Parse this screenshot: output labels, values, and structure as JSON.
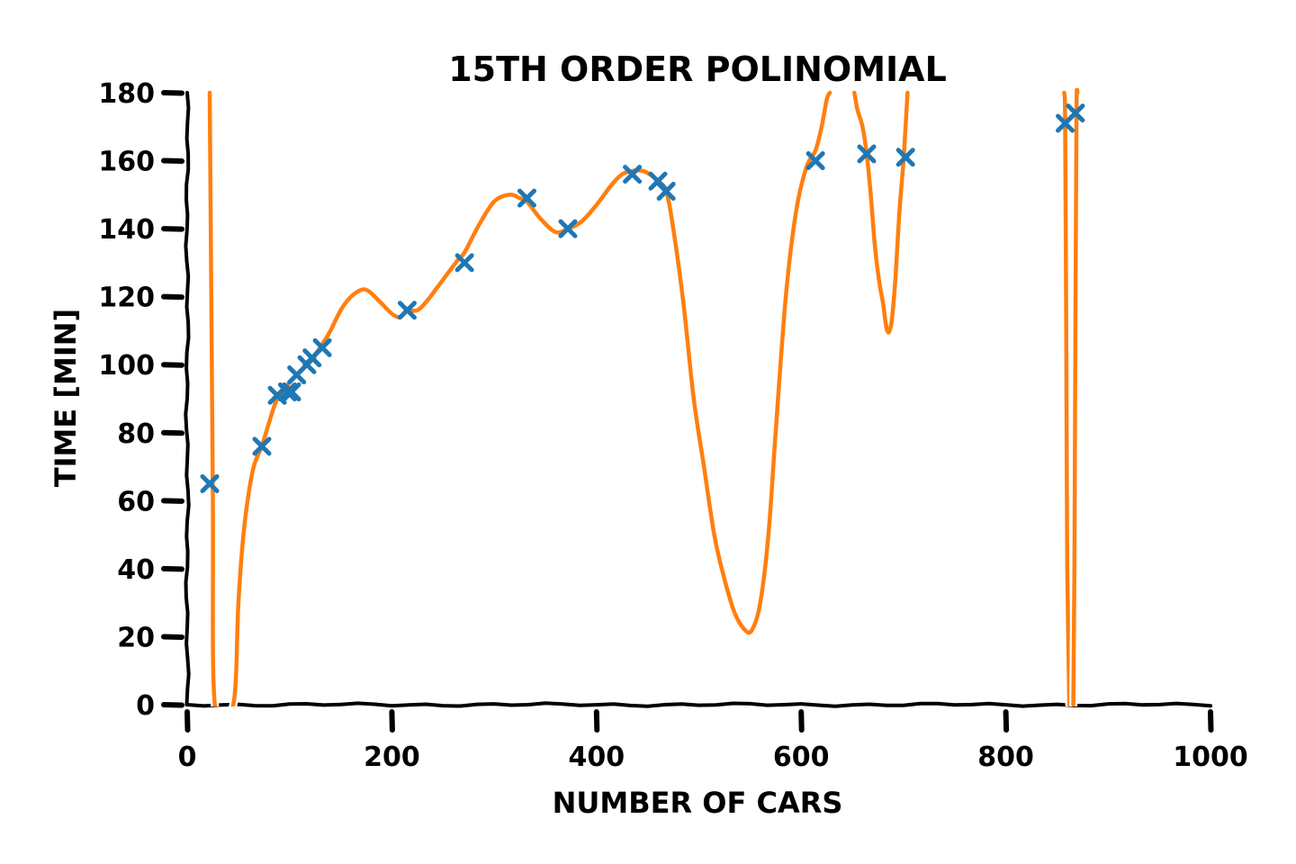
{
  "chart_data": {
    "type": "scatter",
    "title": "15th Order Polinomial",
    "xlabel": "Number of cars",
    "ylabel": "Time [min]",
    "xlim": [
      0,
      1000
    ],
    "ylim": [
      0,
      180
    ],
    "xticks": [
      0,
      200,
      400,
      600,
      800,
      1000
    ],
    "yticks": [
      0,
      20,
      40,
      60,
      80,
      100,
      120,
      140,
      160,
      180
    ],
    "grid": false,
    "legend": "none",
    "style": "xkcd hand-drawn",
    "colors": {
      "points": "#1f77b4",
      "curve": "#ff7f0e",
      "axes": "#000000"
    },
    "series": [
      {
        "type": "scatter",
        "marker": "x",
        "x": [
          22,
          73,
          88,
          98,
          102,
          107,
          117,
          122,
          132,
          215,
          271,
          332,
          372,
          435,
          460,
          468,
          614,
          664,
          702,
          858,
          868
        ],
        "y": [
          65,
          76,
          91,
          92,
          92,
          97,
          100,
          102,
          105,
          116,
          130,
          149,
          140,
          156,
          154,
          151,
          160,
          162,
          161,
          171,
          174
        ]
      },
      {
        "type": "line",
        "x": [
          22,
          25,
          27,
          45,
          50,
          55,
          60,
          65,
          70,
          73,
          80,
          88,
          98,
          107,
          117,
          125,
          132,
          140,
          150,
          160,
          170,
          175,
          180,
          190,
          200,
          208,
          215,
          225,
          235,
          245,
          255,
          265,
          271,
          285,
          300,
          315,
          325,
          332,
          345,
          360,
          372,
          385,
          400,
          415,
          425,
          435,
          445,
          452,
          460,
          468,
          475,
          485,
          495,
          505,
          515,
          525,
          535,
          545,
          552,
          560,
          568,
          575,
          585,
          595,
          605,
          614,
          620,
          625,
          628
        ],
        "y": [
          180,
          65,
          0,
          0,
          30,
          50,
          62,
          70,
          74,
          76,
          83,
          90,
          94,
          97,
          100,
          103,
          106,
          110,
          116,
          120,
          122,
          122,
          121,
          118,
          115,
          114,
          116,
          116,
          119,
          123,
          127,
          131,
          133,
          141,
          148,
          150,
          149,
          148,
          143,
          139,
          140,
          142,
          147,
          153,
          156,
          157,
          157,
          156,
          154,
          151,
          140,
          118,
          90,
          70,
          50,
          37,
          27,
          22,
          22,
          30,
          50,
          80,
          120,
          145,
          158,
          163,
          170,
          178,
          180
        ]
      },
      {
        "type": "line",
        "x": [
          652,
          655,
          660,
          664,
          668,
          672,
          676,
          680,
          684,
          688,
          692,
          696,
          700,
          702,
          704
        ],
        "y": [
          180,
          175,
          170,
          162,
          150,
          135,
          125,
          118,
          110,
          112,
          125,
          145,
          160,
          170,
          180
        ]
      },
      {
        "type": "line",
        "x": [
          857,
          858,
          859,
          860,
          862
        ],
        "y": [
          180,
          171,
          110,
          40,
          0
        ]
      },
      {
        "type": "line",
        "x": [
          870,
          869,
          868,
          867,
          866
        ],
        "y": [
          180,
          174,
          110,
          40,
          0
        ]
      }
    ]
  }
}
